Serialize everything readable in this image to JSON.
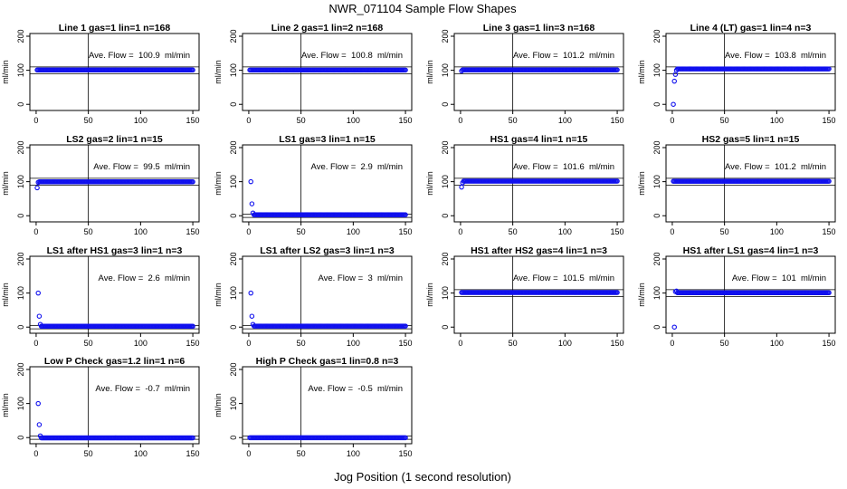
{
  "figure": {
    "title": "NWR_071104  Sample Flow Shapes",
    "xlabel": "Jog Position (1 second resolution)"
  },
  "style": {
    "point_color": "#1010ee",
    "axis_color": "#000000",
    "line_color": "#000000"
  },
  "chart_data": [
    {
      "type": "scatter",
      "title": "Line 1 gas=1 lin=1 n=168",
      "ylabel": "ml/min",
      "annotation": "Ave. Flow =  100.9  ml/min",
      "xlim": [
        0,
        150
      ],
      "ylim": [
        0,
        200
      ],
      "xticks": [
        0,
        50,
        100,
        150
      ],
      "yticks": [
        0,
        100,
        200
      ],
      "hlines": [
        90,
        110
      ],
      "vlines": [
        50
      ],
      "profile": "flat",
      "flat_value": 100.9,
      "first_points": []
    },
    {
      "type": "scatter",
      "title": "Line 2 gas=1 lin=2 n=168",
      "ylabel": "ml/min",
      "annotation": "Ave. Flow =  100.8  ml/min",
      "xlim": [
        0,
        150
      ],
      "ylim": [
        0,
        200
      ],
      "xticks": [
        0,
        50,
        100,
        150
      ],
      "yticks": [
        0,
        100,
        200
      ],
      "hlines": [
        90,
        110
      ],
      "vlines": [
        50
      ],
      "profile": "flat",
      "flat_value": 100.8,
      "first_points": []
    },
    {
      "type": "scatter",
      "title": "Line 3 gas=1 lin=3 n=168",
      "ylabel": "ml/min",
      "annotation": "Ave. Flow =  101.2  ml/min",
      "xlim": [
        0,
        150
      ],
      "ylim": [
        0,
        200
      ],
      "xticks": [
        0,
        50,
        100,
        150
      ],
      "yticks": [
        0,
        100,
        200
      ],
      "hlines": [
        90,
        110
      ],
      "vlines": [
        50
      ],
      "profile": "flat",
      "flat_value": 101.2,
      "first_points": [
        [
          1,
          98
        ]
      ]
    },
    {
      "type": "scatter",
      "title": "Line 4 (LT) gas=1 lin=4 n=3",
      "ylabel": "ml/min",
      "annotation": "Ave. Flow =  103.8  ml/min",
      "xlim": [
        0,
        150
      ],
      "ylim": [
        0,
        200
      ],
      "xticks": [
        0,
        50,
        100,
        150
      ],
      "yticks": [
        0,
        100,
        200
      ],
      "hlines": [
        90,
        110
      ],
      "vlines": [
        50
      ],
      "profile": "flat",
      "flat_value": 104,
      "first_points": [
        [
          1,
          0
        ],
        [
          2,
          68
        ],
        [
          3,
          88
        ],
        [
          4,
          100
        ]
      ]
    },
    {
      "type": "scatter",
      "title": "LS2 gas=2 lin=1 n=15",
      "ylabel": "ml/min",
      "annotation": "Ave. Flow =  99.5  ml/min",
      "xlim": [
        0,
        150
      ],
      "ylim": [
        0,
        200
      ],
      "xticks": [
        0,
        50,
        100,
        150
      ],
      "yticks": [
        0,
        100,
        200
      ],
      "hlines": [
        90,
        110
      ],
      "vlines": [
        50
      ],
      "profile": "flat",
      "flat_value": 99.5,
      "first_points": [
        [
          1,
          82
        ],
        [
          2,
          98
        ]
      ]
    },
    {
      "type": "scatter",
      "title": "LS1 gas=3 lin=1 n=15",
      "ylabel": "ml/min",
      "annotation": "Ave. Flow =  2.9  ml/min",
      "xlim": [
        0,
        150
      ],
      "ylim": [
        0,
        200
      ],
      "xticks": [
        0,
        50,
        100,
        150
      ],
      "yticks": [
        0,
        100,
        200
      ],
      "hlines": [
        -5,
        5
      ],
      "vlines": [
        50
      ],
      "profile": "flat",
      "flat_value": 2.9,
      "first_points": [
        [
          2,
          100
        ],
        [
          3,
          35
        ],
        [
          4,
          8
        ]
      ]
    },
    {
      "type": "scatter",
      "title": "HS1 gas=4 lin=1 n=15",
      "ylabel": "ml/min",
      "annotation": "Ave. Flow =  101.6  ml/min",
      "xlim": [
        0,
        150
      ],
      "ylim": [
        0,
        200
      ],
      "xticks": [
        0,
        50,
        100,
        150
      ],
      "yticks": [
        0,
        100,
        200
      ],
      "hlines": [
        90,
        110
      ],
      "vlines": [
        50
      ],
      "profile": "flat",
      "flat_value": 101.6,
      "first_points": [
        [
          1,
          84
        ],
        [
          2,
          97
        ]
      ]
    },
    {
      "type": "scatter",
      "title": "HS2 gas=5 lin=1 n=15",
      "ylabel": "ml/min",
      "annotation": "Ave. Flow =  101.2  ml/min",
      "xlim": [
        0,
        150
      ],
      "ylim": [
        0,
        200
      ],
      "xticks": [
        0,
        50,
        100,
        150
      ],
      "yticks": [
        0,
        100,
        200
      ],
      "hlines": [
        90,
        110
      ],
      "vlines": [
        50
      ],
      "profile": "flat",
      "flat_value": 101.2,
      "first_points": []
    },
    {
      "type": "scatter",
      "title": "LS1 after HS1 gas=3 lin=1 n=3",
      "ylabel": "ml/min",
      "annotation": "Ave. Flow =  2.6  ml/min",
      "xlim": [
        0,
        150
      ],
      "ylim": [
        0,
        200
      ],
      "xticks": [
        0,
        50,
        100,
        150
      ],
      "yticks": [
        0,
        100,
        200
      ],
      "hlines": [
        -5,
        5
      ],
      "vlines": [
        50
      ],
      "profile": "flat",
      "flat_value": 2.6,
      "first_points": [
        [
          2,
          100
        ],
        [
          3,
          32
        ],
        [
          4,
          8
        ]
      ]
    },
    {
      "type": "scatter",
      "title": "LS1 after LS2 gas=3 lin=1 n=3",
      "ylabel": "ml/min",
      "annotation": "Ave. Flow =  3  ml/min",
      "xlim": [
        0,
        150
      ],
      "ylim": [
        0,
        200
      ],
      "xticks": [
        0,
        50,
        100,
        150
      ],
      "yticks": [
        0,
        100,
        200
      ],
      "hlines": [
        -5,
        5
      ],
      "vlines": [
        50
      ],
      "profile": "flat",
      "flat_value": 3,
      "first_points": [
        [
          2,
          100
        ],
        [
          3,
          32
        ],
        [
          4,
          8
        ]
      ]
    },
    {
      "type": "scatter",
      "title": "HS1 after HS2 gas=4 lin=1 n=3",
      "ylabel": "ml/min",
      "annotation": "Ave. Flow =  101.5  ml/min",
      "xlim": [
        0,
        150
      ],
      "ylim": [
        0,
        200
      ],
      "xticks": [
        0,
        50,
        100,
        150
      ],
      "yticks": [
        0,
        100,
        200
      ],
      "hlines": [
        90,
        110
      ],
      "vlines": [
        50
      ],
      "profile": "flat",
      "flat_value": 101.5,
      "first_points": []
    },
    {
      "type": "scatter",
      "title": "HS1 after LS1 gas=4 lin=1 n=3",
      "ylabel": "ml/min",
      "annotation": "Ave. Flow =  101  ml/min",
      "xlim": [
        0,
        150
      ],
      "ylim": [
        0,
        200
      ],
      "xticks": [
        0,
        50,
        100,
        150
      ],
      "yticks": [
        0,
        100,
        200
      ],
      "hlines": [
        90,
        110
      ],
      "vlines": [
        50
      ],
      "profile": "flat",
      "flat_value": 101,
      "first_points": [
        [
          2,
          0
        ],
        [
          3,
          104
        ],
        [
          4,
          106
        ]
      ]
    },
    {
      "type": "scatter",
      "title": "Low P Check gas=1.2 lin=1 n=6",
      "ylabel": "ml/min",
      "annotation": "Ave. Flow =  -0.7  ml/min",
      "xlim": [
        0,
        150
      ],
      "ylim": [
        0,
        200
      ],
      "xticks": [
        0,
        50,
        100,
        150
      ],
      "yticks": [
        0,
        100,
        200
      ],
      "hlines": [
        -5,
        5
      ],
      "vlines": [
        50
      ],
      "profile": "flat",
      "flat_value": -0.7,
      "first_points": [
        [
          2,
          100
        ],
        [
          3,
          38
        ],
        [
          4,
          5
        ]
      ]
    },
    {
      "type": "scatter",
      "title": "High P Check gas=1 lin=0.8 n=3",
      "ylabel": "ml/min",
      "annotation": "Ave. Flow =  -0.5  ml/min",
      "xlim": [
        0,
        150
      ],
      "ylim": [
        0,
        200
      ],
      "xticks": [
        0,
        50,
        100,
        150
      ],
      "yticks": [
        0,
        100,
        200
      ],
      "hlines": [
        -5,
        5
      ],
      "vlines": [
        50
      ],
      "profile": "flat",
      "flat_value": -0.5,
      "first_points": []
    }
  ]
}
